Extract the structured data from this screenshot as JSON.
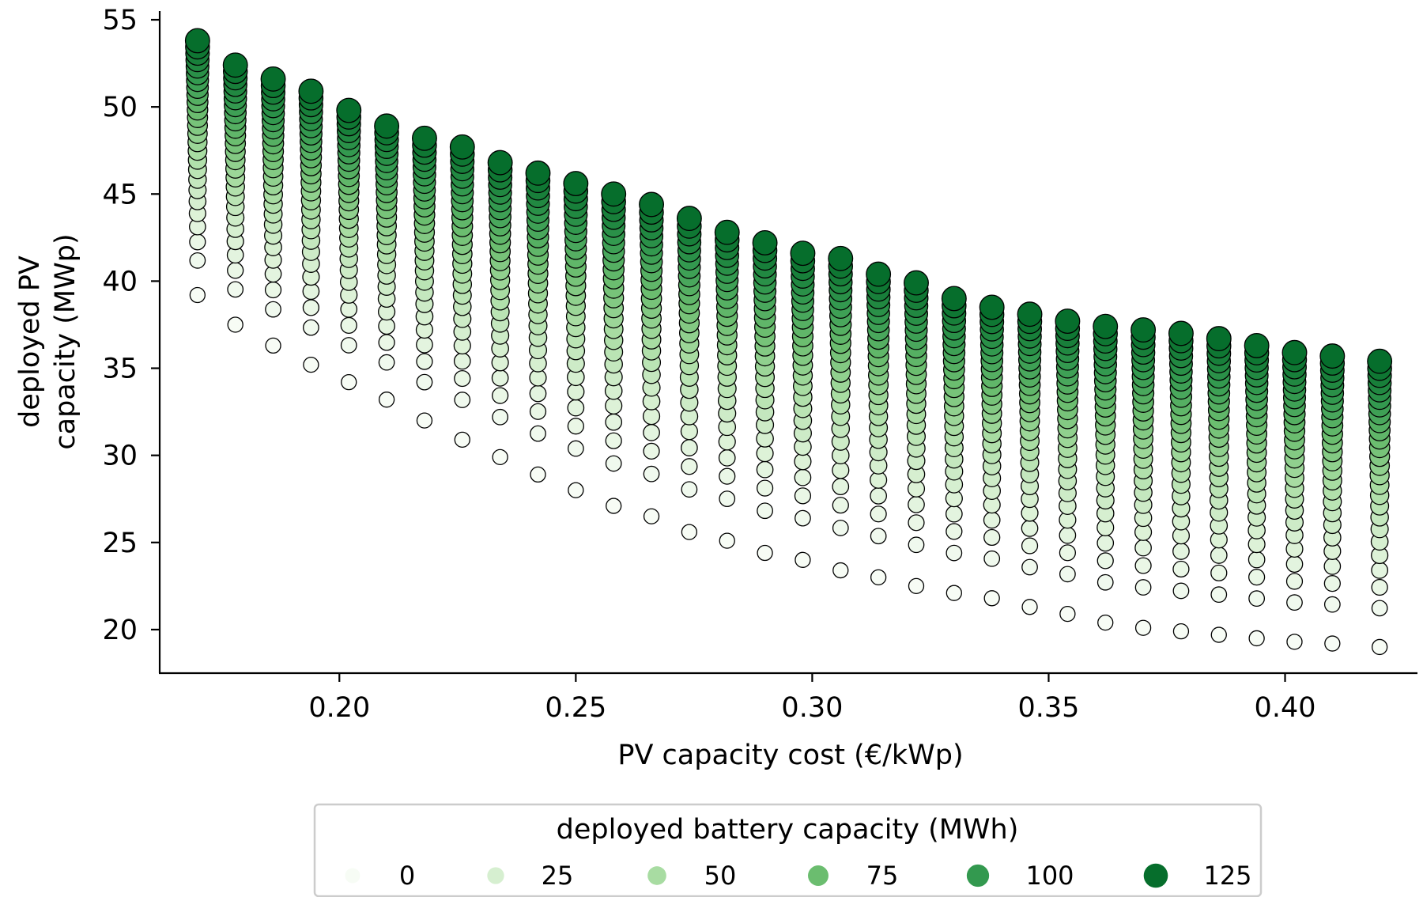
{
  "chart_data": {
    "type": "scatter",
    "xlabel": "PV capacity cost (€/kWp)",
    "ylabel_lines": [
      "deployed PV",
      "capacity (MWp)"
    ],
    "xlim": [
      0.162,
      0.428
    ],
    "ylim": [
      17.5,
      55.5
    ],
    "xticks": [
      "0.20",
      "0.25",
      "0.30",
      "0.35",
      "0.40"
    ],
    "yticks": [
      "20",
      "25",
      "30",
      "35",
      "40",
      "45",
      "50",
      "55"
    ],
    "grid": false,
    "legend_position": "bottom-center",
    "legend": {
      "title": "deployed battery capacity (MWh)",
      "items": [
        "0",
        "25",
        "50",
        "75",
        "100",
        "125"
      ]
    },
    "color_scale": [
      "#f7fcf5",
      "#d6efd0",
      "#a8dca2",
      "#6bbd6f",
      "#33994f",
      "#066e2c"
    ],
    "x_values": [
      0.17,
      0.178,
      0.186,
      0.194,
      0.202,
      0.21,
      0.218,
      0.226,
      0.234,
      0.242,
      0.25,
      0.258,
      0.266,
      0.274,
      0.282,
      0.29,
      0.298,
      0.306,
      0.314,
      0.322,
      0.33,
      0.338,
      0.346,
      0.354,
      0.362,
      0.37,
      0.378,
      0.386,
      0.394,
      0.402,
      0.41,
      0.42
    ],
    "battery_levels": [
      0,
      5,
      10,
      15,
      20,
      25,
      30,
      35,
      40,
      45,
      50,
      55,
      60,
      65,
      70,
      75,
      80,
      85,
      90,
      95,
      100,
      105,
      110,
      115,
      120,
      125
    ],
    "series": [
      {
        "x": 0.17,
        "y_at_0_MWh": 39.2,
        "y_at_125_MWh": 53.8
      },
      {
        "x": 0.178,
        "y_at_0_MWh": 37.5,
        "y_at_125_MWh": 52.4
      },
      {
        "x": 0.186,
        "y_at_0_MWh": 36.3,
        "y_at_125_MWh": 51.6
      },
      {
        "x": 0.194,
        "y_at_0_MWh": 35.2,
        "y_at_125_MWh": 50.9
      },
      {
        "x": 0.202,
        "y_at_0_MWh": 34.2,
        "y_at_125_MWh": 49.8
      },
      {
        "x": 0.21,
        "y_at_0_MWh": 33.2,
        "y_at_125_MWh": 48.9
      },
      {
        "x": 0.218,
        "y_at_0_MWh": 32.0,
        "y_at_125_MWh": 48.2
      },
      {
        "x": 0.226,
        "y_at_0_MWh": 30.9,
        "y_at_125_MWh": 47.7
      },
      {
        "x": 0.234,
        "y_at_0_MWh": 29.9,
        "y_at_125_MWh": 46.8
      },
      {
        "x": 0.242,
        "y_at_0_MWh": 28.9,
        "y_at_125_MWh": 46.2
      },
      {
        "x": 0.25,
        "y_at_0_MWh": 28.0,
        "y_at_125_MWh": 45.6
      },
      {
        "x": 0.258,
        "y_at_0_MWh": 27.1,
        "y_at_125_MWh": 45.0
      },
      {
        "x": 0.266,
        "y_at_0_MWh": 26.5,
        "y_at_125_MWh": 44.4
      },
      {
        "x": 0.274,
        "y_at_0_MWh": 25.6,
        "y_at_125_MWh": 43.6
      },
      {
        "x": 0.282,
        "y_at_0_MWh": 25.1,
        "y_at_125_MWh": 42.8
      },
      {
        "x": 0.29,
        "y_at_0_MWh": 24.4,
        "y_at_125_MWh": 42.2
      },
      {
        "x": 0.298,
        "y_at_0_MWh": 24.0,
        "y_at_125_MWh": 41.6
      },
      {
        "x": 0.306,
        "y_at_0_MWh": 23.4,
        "y_at_125_MWh": 41.3
      },
      {
        "x": 0.314,
        "y_at_0_MWh": 23.0,
        "y_at_125_MWh": 40.4
      },
      {
        "x": 0.322,
        "y_at_0_MWh": 22.5,
        "y_at_125_MWh": 39.9
      },
      {
        "x": 0.33,
        "y_at_0_MWh": 22.1,
        "y_at_125_MWh": 39.0
      },
      {
        "x": 0.338,
        "y_at_0_MWh": 21.8,
        "y_at_125_MWh": 38.5
      },
      {
        "x": 0.346,
        "y_at_0_MWh": 21.3,
        "y_at_125_MWh": 38.1
      },
      {
        "x": 0.354,
        "y_at_0_MWh": 20.9,
        "y_at_125_MWh": 37.7
      },
      {
        "x": 0.362,
        "y_at_0_MWh": 20.4,
        "y_at_125_MWh": 37.4
      },
      {
        "x": 0.37,
        "y_at_0_MWh": 20.1,
        "y_at_125_MWh": 37.2
      },
      {
        "x": 0.378,
        "y_at_0_MWh": 19.9,
        "y_at_125_MWh": 37.0
      },
      {
        "x": 0.386,
        "y_at_0_MWh": 19.7,
        "y_at_125_MWh": 36.7
      },
      {
        "x": 0.394,
        "y_at_0_MWh": 19.5,
        "y_at_125_MWh": 36.3
      },
      {
        "x": 0.402,
        "y_at_0_MWh": 19.3,
        "y_at_125_MWh": 35.9
      },
      {
        "x": 0.41,
        "y_at_0_MWh": 19.2,
        "y_at_125_MWh": 35.7
      },
      {
        "x": 0.42,
        "y_at_0_MWh": 19.0,
        "y_at_125_MWh": 35.4
      }
    ]
  }
}
